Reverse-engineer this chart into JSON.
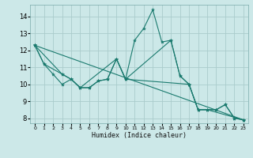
{
  "xlabel": "Humidex (Indice chaleur)",
  "bg_color": "#cce8e8",
  "grid_color": "#aacccc",
  "line_color": "#1a7a6e",
  "xlim": [
    -0.5,
    23.5
  ],
  "ylim": [
    7.7,
    14.7
  ],
  "yticks": [
    8,
    9,
    10,
    11,
    12,
    13,
    14
  ],
  "xticks": [
    0,
    1,
    2,
    3,
    4,
    5,
    6,
    7,
    8,
    9,
    10,
    11,
    12,
    13,
    14,
    15,
    16,
    17,
    18,
    19,
    20,
    21,
    22,
    23
  ],
  "series": [
    {
      "x": [
        0,
        1,
        2,
        3,
        4,
        5,
        6,
        7,
        8,
        9,
        10,
        11,
        12,
        13,
        14,
        15,
        16,
        17,
        18,
        19,
        20,
        21,
        22,
        23
      ],
      "y": [
        12.3,
        11.2,
        10.6,
        10.0,
        10.3,
        9.8,
        9.8,
        10.2,
        10.3,
        11.5,
        10.3,
        12.6,
        13.3,
        14.4,
        12.5,
        12.6,
        10.5,
        10.0,
        8.5,
        8.5,
        8.5,
        8.8,
        8.0,
        7.9
      ]
    },
    {
      "x": [
        0,
        1,
        3,
        4,
        5,
        6,
        7,
        8,
        9,
        10,
        15,
        16,
        17,
        18,
        19,
        20,
        21,
        22,
        23
      ],
      "y": [
        12.3,
        11.2,
        10.6,
        10.3,
        9.8,
        9.8,
        10.2,
        10.3,
        11.5,
        10.3,
        12.6,
        10.5,
        10.0,
        8.5,
        8.5,
        8.5,
        8.8,
        8.0,
        7.9
      ]
    },
    {
      "x": [
        0,
        3,
        4,
        5,
        9,
        10,
        17,
        18,
        19,
        23
      ],
      "y": [
        12.3,
        10.6,
        10.3,
        9.8,
        11.5,
        10.3,
        10.0,
        8.5,
        8.5,
        7.9
      ]
    },
    {
      "x": [
        0,
        23
      ],
      "y": [
        12.3,
        7.9
      ]
    }
  ]
}
